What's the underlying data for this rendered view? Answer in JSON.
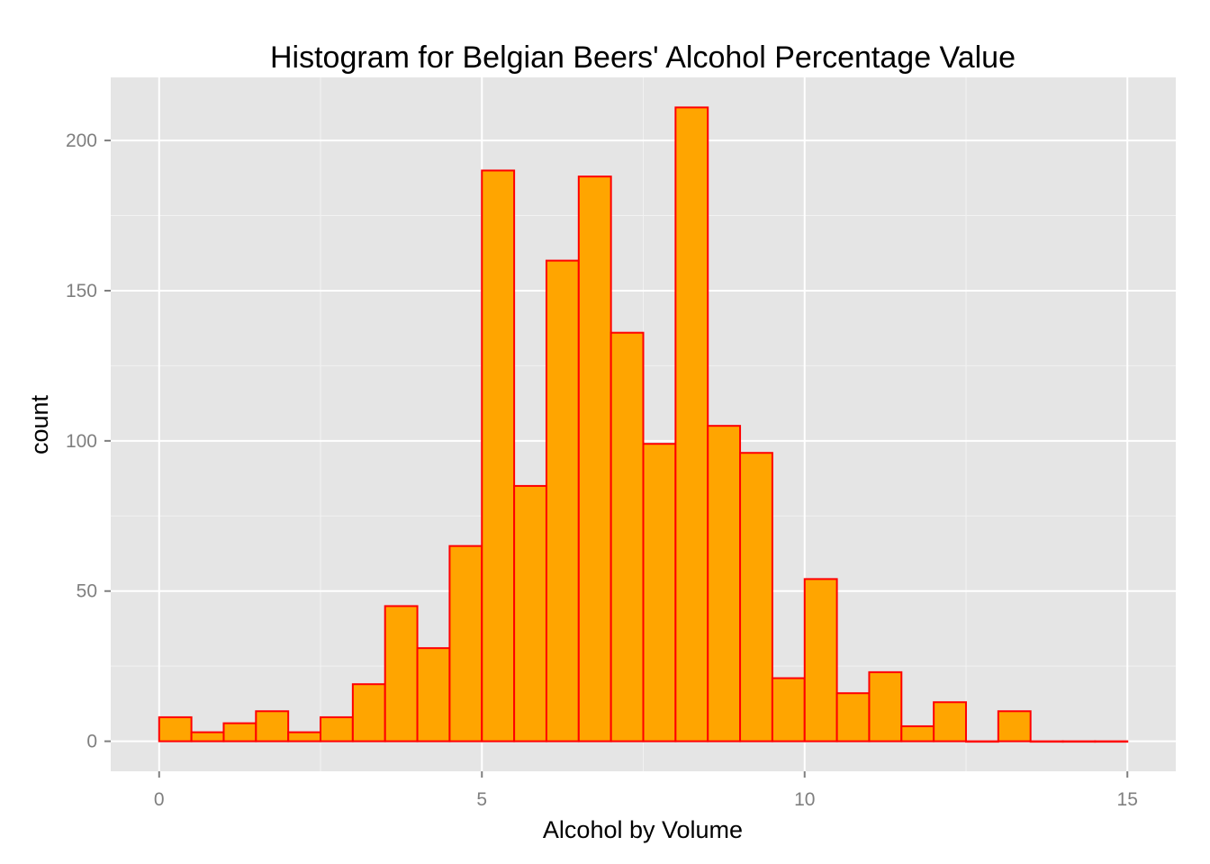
{
  "chart_data": {
    "type": "bar",
    "title": "Histogram for Belgian Beers' Alcohol Percentage Value",
    "xlabel": "Alcohol by Volume",
    "ylabel": "count",
    "xlim": [
      -0.75,
      15.75
    ],
    "ylim": [
      -10,
      221
    ],
    "x_ticks": [
      0,
      5,
      10,
      15
    ],
    "y_ticks": [
      0,
      50,
      100,
      150,
      200
    ],
    "bin_width": 0.5,
    "bin_starts": [
      0,
      0.5,
      1,
      1.5,
      2,
      2.5,
      3,
      3.5,
      4,
      4.5,
      5,
      5.5,
      6,
      6.5,
      7,
      7.5,
      8,
      8.5,
      9,
      9.5,
      10,
      10.5,
      11,
      11.5,
      12,
      12.5,
      13,
      13.5,
      14,
      14.5
    ],
    "values": [
      8,
      3,
      6,
      10,
      3,
      8,
      19,
      45,
      31,
      65,
      190,
      85,
      160,
      188,
      136,
      99,
      211,
      105,
      96,
      21,
      54,
      16,
      23,
      5,
      13,
      0,
      10,
      0,
      0,
      0
    ],
    "grid": true,
    "legend": "none",
    "colors": {
      "bar_fill": "#FFA500",
      "bar_outline": "#FF0000",
      "panel_background": "#E5E5E5",
      "major_grid": "#FFFFFF",
      "minor_grid": "#F2F2F2",
      "tick_label": "#7F7F7F"
    }
  }
}
